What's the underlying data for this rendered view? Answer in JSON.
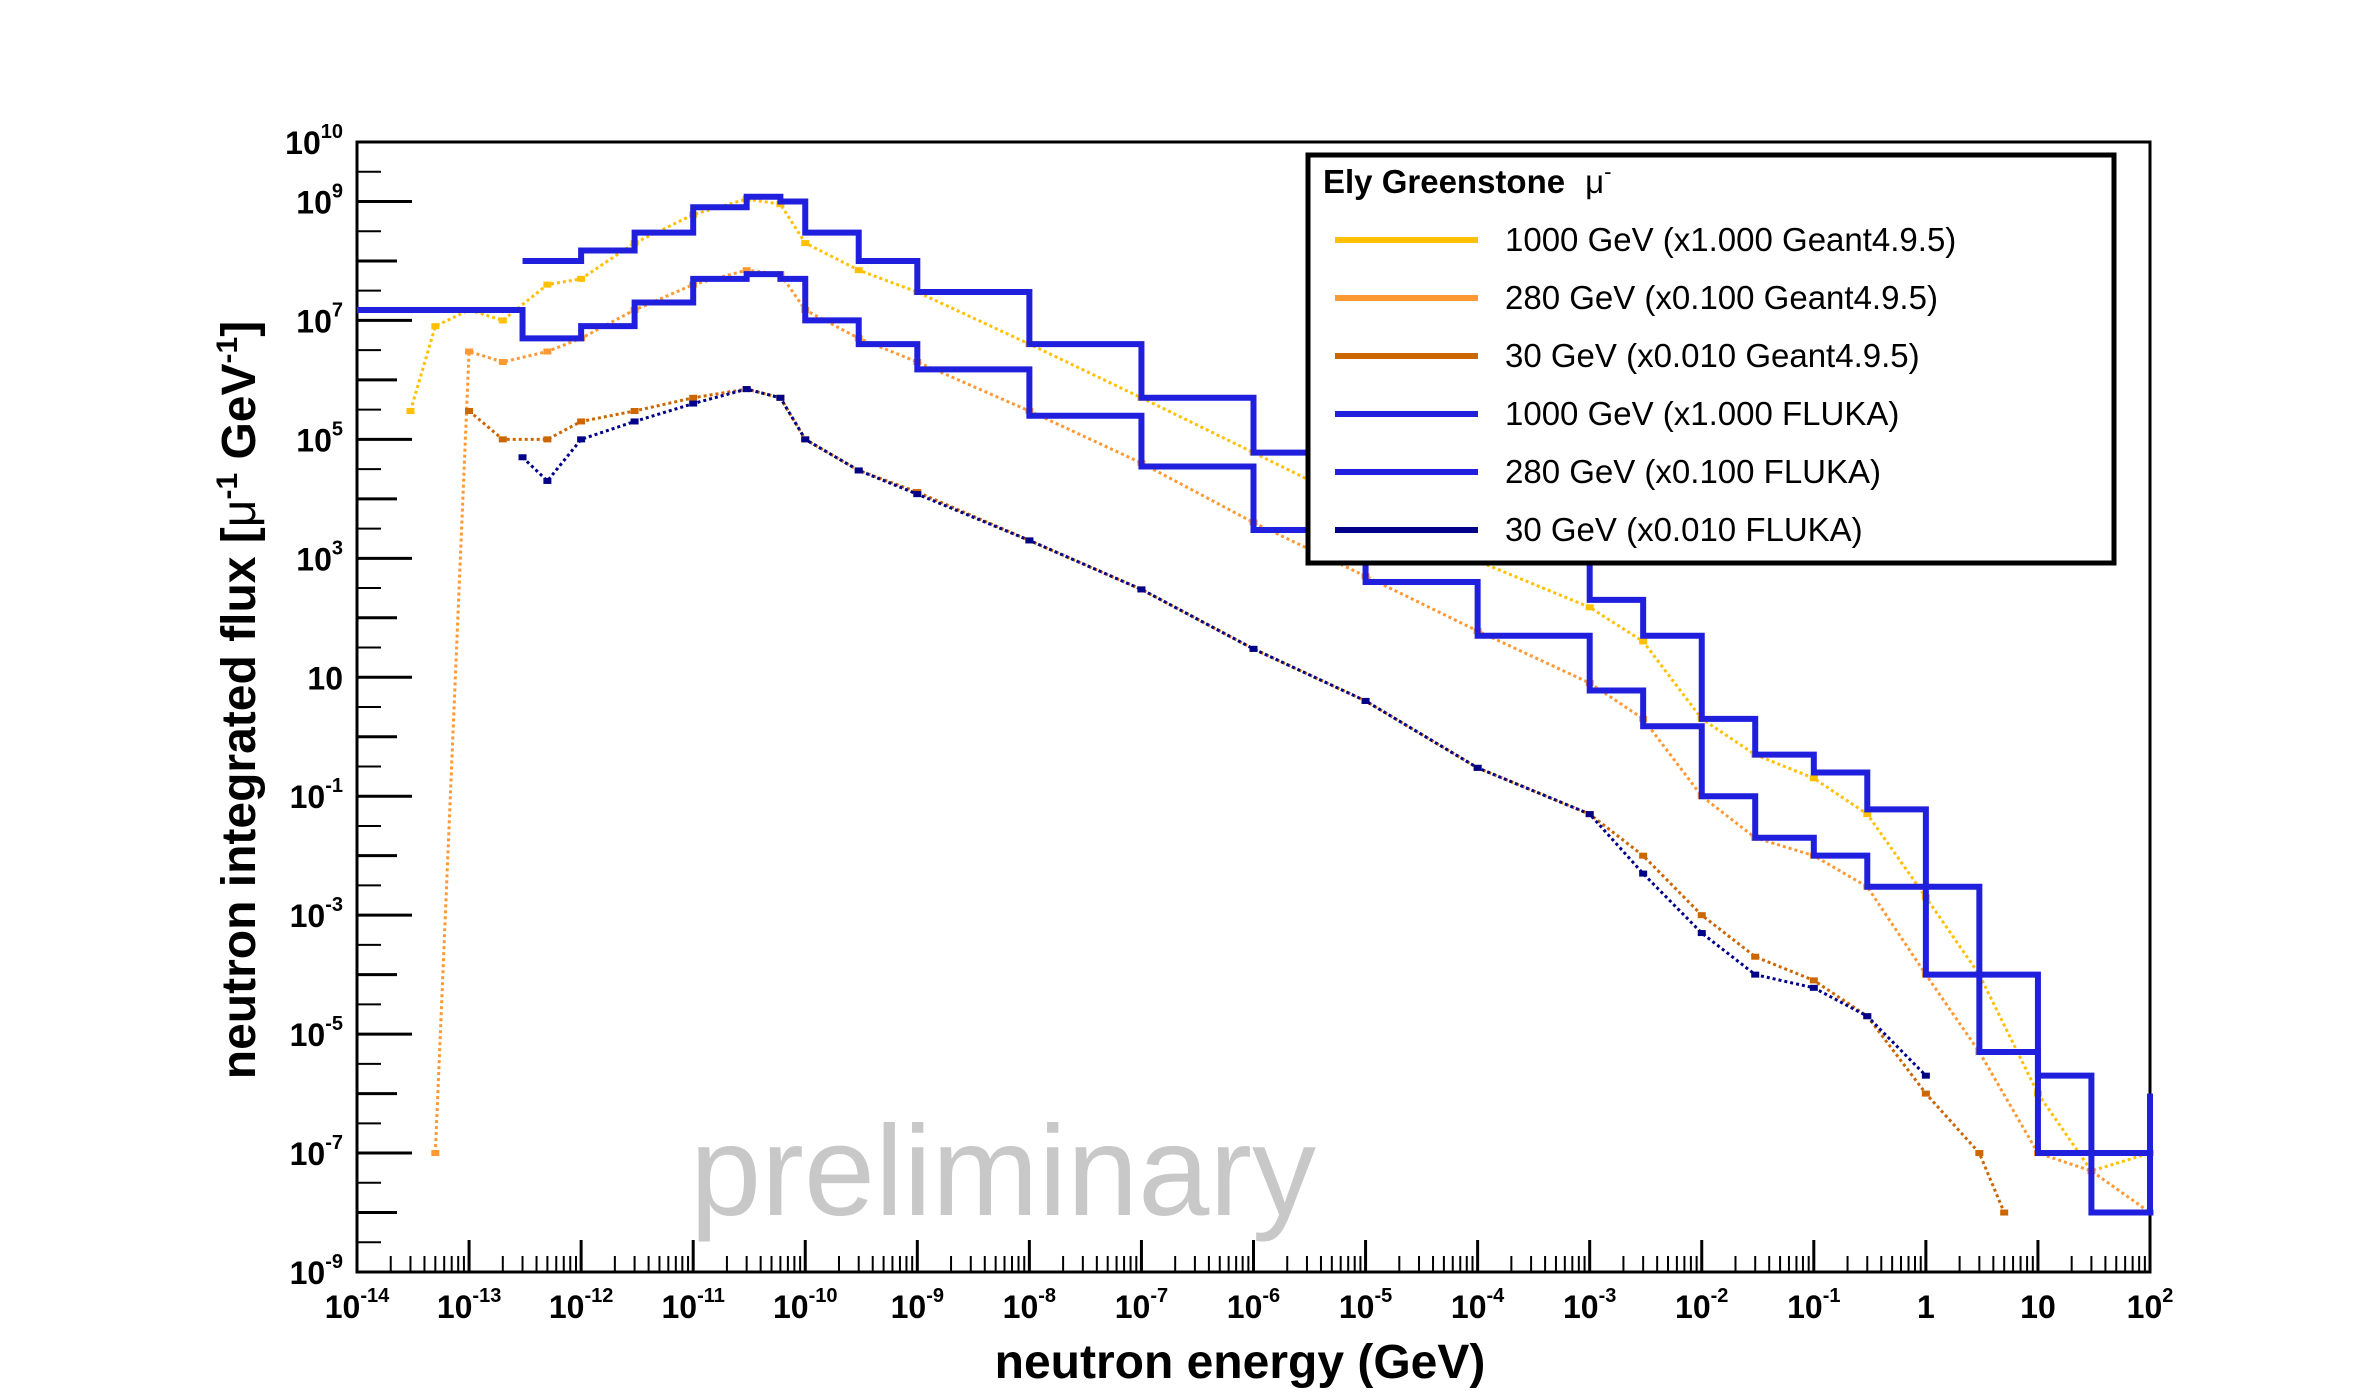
{
  "chart_data": {
    "type": "line",
    "title": "",
    "xlabel": "neutron energy (GeV)",
    "ylabel": {
      "base": "neutron integrated flux [",
      "mu": "μ",
      "sup1": "-1",
      "gev": " GeV",
      "sup2": "-1",
      "close": "]"
    },
    "x_scale": "log",
    "y_scale": "log",
    "xlim": [
      1e-14,
      100
    ],
    "ylim": [
      1e-09,
      10000000000.0
    ],
    "grid": false,
    "x_ticks": [
      {
        "value": 1e-14,
        "base": "10",
        "exp": "-14"
      },
      {
        "value": 1e-13,
        "base": "10",
        "exp": "-13"
      },
      {
        "value": 1e-12,
        "base": "10",
        "exp": "-12"
      },
      {
        "value": 1e-11,
        "base": "10",
        "exp": "-11"
      },
      {
        "value": 1e-10,
        "base": "10",
        "exp": "-10"
      },
      {
        "value": 1e-09,
        "base": "10",
        "exp": "-9"
      },
      {
        "value": 1e-08,
        "base": "10",
        "exp": "-8"
      },
      {
        "value": 1e-07,
        "base": "10",
        "exp": "-7"
      },
      {
        "value": 1e-06,
        "base": "10",
        "exp": "-6"
      },
      {
        "value": 1e-05,
        "base": "10",
        "exp": "-5"
      },
      {
        "value": 0.0001,
        "base": "10",
        "exp": "-4"
      },
      {
        "value": 0.001,
        "base": "10",
        "exp": "-3"
      },
      {
        "value": 0.01,
        "base": "10",
        "exp": "-2"
      },
      {
        "value": 0.1,
        "base": "10",
        "exp": "-1"
      },
      {
        "value": 1,
        "base": "1",
        "exp": ""
      },
      {
        "value": 10,
        "base": "10",
        "exp": ""
      },
      {
        "value": 100,
        "base": "10",
        "exp": "2"
      }
    ],
    "y_ticks": [
      {
        "value": 10000000000.0,
        "base": "10",
        "exp": "10"
      },
      {
        "value": 1000000000.0,
        "base": "10",
        "exp": "9"
      },
      {
        "value": 10000000.0,
        "base": "10",
        "exp": "7"
      },
      {
        "value": 100000.0,
        "base": "10",
        "exp": "5"
      },
      {
        "value": 1000.0,
        "base": "10",
        "exp": "3"
      },
      {
        "value": 10,
        "base": "10",
        "exp": ""
      },
      {
        "value": 0.1,
        "base": "10",
        "exp": "-1"
      },
      {
        "value": 0.001,
        "base": "10",
        "exp": "-3"
      },
      {
        "value": 1e-05,
        "base": "10",
        "exp": "-5"
      },
      {
        "value": 1e-07,
        "base": "10",
        "exp": "-7"
      },
      {
        "value": 1e-09,
        "base": "10",
        "exp": "-9"
      }
    ],
    "legend": {
      "title": "Ely Greenstone",
      "title_particle": "μ",
      "title_particle_sup": "-",
      "position": "top-right"
    },
    "annotation": "preliminary",
    "series": [
      {
        "name": "1000 GeV (x1.000 Geant4.9.5)",
        "color": "#ffc000",
        "style": "markers",
        "points": [
          [
            3e-14,
            300000.0
          ],
          [
            5e-14,
            8000000.0
          ],
          [
            1e-13,
            15000000.0
          ],
          [
            2e-13,
            10000000.0
          ],
          [
            5e-13,
            40000000.0
          ],
          [
            1e-12,
            50000000.0
          ],
          [
            3e-12,
            200000000.0
          ],
          [
            1e-11,
            600000000.0
          ],
          [
            3e-11,
            1100000000.0
          ],
          [
            6e-11,
            900000000.0
          ],
          [
            1e-10,
            200000000.0
          ],
          [
            3e-10,
            70000000.0
          ],
          [
            1e-09,
            30000000.0
          ],
          [
            1e-08,
            4000000.0
          ],
          [
            1e-07,
            500000.0
          ],
          [
            1e-06,
            60000.0
          ],
          [
            1e-05,
            7000.0
          ],
          [
            0.0001,
            900
          ],
          [
            0.001,
            150
          ],
          [
            0.003,
            40
          ],
          [
            0.01,
            2
          ],
          [
            0.03,
            0.5
          ],
          [
            0.1,
            0.2
          ],
          [
            0.3,
            0.05
          ],
          [
            1,
            0.002
          ],
          [
            3,
            0.0001
          ],
          [
            10,
            1e-06
          ],
          [
            30,
            5e-08
          ],
          [
            100,
            1e-07
          ]
        ]
      },
      {
        "name": "280 GeV (x0.100 Geant4.9.5)",
        "color": "#ff9933",
        "style": "markers",
        "points": [
          [
            5e-14,
            1e-07
          ],
          [
            1e-13,
            3000000.0
          ],
          [
            2e-13,
            2000000.0
          ],
          [
            5e-13,
            3000000.0
          ],
          [
            1e-12,
            5000000.0
          ],
          [
            3e-12,
            15000000.0
          ],
          [
            1e-11,
            40000000.0
          ],
          [
            3e-11,
            70000000.0
          ],
          [
            6e-11,
            60000000.0
          ],
          [
            1e-10,
            15000000.0
          ],
          [
            3e-10,
            5000000.0
          ],
          [
            1e-09,
            2000000.0
          ],
          [
            1e-08,
            300000.0
          ],
          [
            1e-07,
            40000.0
          ],
          [
            1e-06,
            4000.0
          ],
          [
            1e-05,
            500
          ],
          [
            0.0001,
            60
          ],
          [
            0.001,
            8
          ],
          [
            0.003,
            2
          ],
          [
            0.01,
            0.1
          ],
          [
            0.03,
            0.02
          ],
          [
            0.1,
            0.01
          ],
          [
            0.3,
            0.003
          ],
          [
            1,
            0.0001
          ],
          [
            3,
            5e-06
          ],
          [
            10,
            1e-07
          ],
          [
            30,
            5e-08
          ],
          [
            100,
            1e-08
          ]
        ]
      },
      {
        "name": "30 GeV (x0.010 Geant4.9.5)",
        "color": "#cc6600",
        "style": "markers",
        "points": [
          [
            1e-13,
            300000.0
          ],
          [
            2e-13,
            100000.0
          ],
          [
            5e-13,
            100000.0
          ],
          [
            1e-12,
            200000.0
          ],
          [
            3e-12,
            300000.0
          ],
          [
            1e-11,
            500000.0
          ],
          [
            3e-11,
            700000.0
          ],
          [
            6e-11,
            500000.0
          ],
          [
            1e-10,
            100000.0
          ],
          [
            3e-10,
            30000.0
          ],
          [
            1e-09,
            13000.0
          ],
          [
            1e-08,
            2000.0
          ],
          [
            1e-07,
            300
          ],
          [
            1e-06,
            30
          ],
          [
            1e-05,
            4
          ],
          [
            0.0001,
            0.3
          ],
          [
            0.001,
            0.05
          ],
          [
            0.003,
            0.01
          ],
          [
            0.01,
            0.001
          ],
          [
            0.03,
            0.0002
          ],
          [
            0.1,
            8e-05
          ],
          [
            0.3,
            2e-05
          ],
          [
            1,
            1e-06
          ],
          [
            3,
            1e-07
          ],
          [
            5,
            1e-08
          ]
        ]
      },
      {
        "name": "1000 GeV (x1.000 FLUKA)",
        "color": "#1f1fdd",
        "style": "step",
        "points": [
          [
            3e-13,
            100000000.0
          ],
          [
            1e-12,
            150000000.0
          ],
          [
            3e-12,
            300000000.0
          ],
          [
            1e-11,
            800000000.0
          ],
          [
            3e-11,
            1200000000.0
          ],
          [
            6e-11,
            1000000000.0
          ],
          [
            1e-10,
            300000000.0
          ],
          [
            3e-10,
            100000000.0
          ],
          [
            1e-09,
            30000000.0
          ],
          [
            1e-08,
            4000000.0
          ],
          [
            1e-07,
            500000.0
          ],
          [
            1e-06,
            60000.0
          ],
          [
            1e-05,
            7000.0
          ],
          [
            0.0001,
            1000.0
          ],
          [
            0.001,
            200
          ],
          [
            0.003,
            50
          ],
          [
            0.01,
            2
          ],
          [
            0.03,
            0.5
          ],
          [
            0.1,
            0.25
          ],
          [
            0.3,
            0.06
          ],
          [
            1,
            0.003
          ],
          [
            3,
            0.0001
          ],
          [
            10,
            2e-06
          ],
          [
            30,
            1e-07
          ],
          [
            100,
            1e-06
          ]
        ]
      },
      {
        "name": "280 GeV (x0.100 FLUKA)",
        "color": "#1f1fdd",
        "style": "step",
        "points": [
          [
            1e-14,
            15000000.0
          ],
          [
            3e-13,
            15000000.0
          ],
          [
            3e-13,
            5000000.0
          ],
          [
            1e-12,
            8000000.0
          ],
          [
            3e-12,
            20000000.0
          ],
          [
            1e-11,
            50000000.0
          ],
          [
            3e-11,
            60000000.0
          ],
          [
            6e-11,
            50000000.0
          ],
          [
            1e-10,
            10000000.0
          ],
          [
            3e-10,
            4000000.0
          ],
          [
            1e-09,
            1500000.0
          ],
          [
            1e-08,
            250000.0
          ],
          [
            1e-07,
            35000.0
          ],
          [
            1e-06,
            3000.0
          ],
          [
            1e-05,
            400
          ],
          [
            0.0001,
            50
          ],
          [
            0.001,
            6
          ],
          [
            0.003,
            1.5
          ],
          [
            0.01,
            0.1
          ],
          [
            0.03,
            0.02
          ],
          [
            0.1,
            0.01
          ],
          [
            0.3,
            0.003
          ],
          [
            1,
            0.0001
          ],
          [
            3,
            5e-06
          ],
          [
            10,
            1e-07
          ],
          [
            30,
            1e-08
          ],
          [
            100,
            1e-07
          ]
        ]
      },
      {
        "name": "30 GeV (x0.010 FLUKA)",
        "color": "#000088",
        "style": "markers",
        "points": [
          [
            3e-13,
            50000.0
          ],
          [
            5e-13,
            20000.0
          ],
          [
            1e-12,
            100000.0
          ],
          [
            3e-12,
            200000.0
          ],
          [
            1e-11,
            400000.0
          ],
          [
            3e-11,
            700000.0
          ],
          [
            6e-11,
            500000.0
          ],
          [
            1e-10,
            100000.0
          ],
          [
            3e-10,
            30000.0
          ],
          [
            1e-09,
            12000.0
          ],
          [
            1e-08,
            2000.0
          ],
          [
            1e-07,
            300
          ],
          [
            1e-06,
            30
          ],
          [
            1e-05,
            4
          ],
          [
            0.0001,
            0.3
          ],
          [
            0.001,
            0.05
          ],
          [
            0.003,
            0.005
          ],
          [
            0.01,
            0.0005
          ],
          [
            0.03,
            0.0001
          ],
          [
            0.1,
            6e-05
          ],
          [
            0.3,
            2e-05
          ],
          [
            1,
            2e-06
          ]
        ]
      }
    ]
  }
}
